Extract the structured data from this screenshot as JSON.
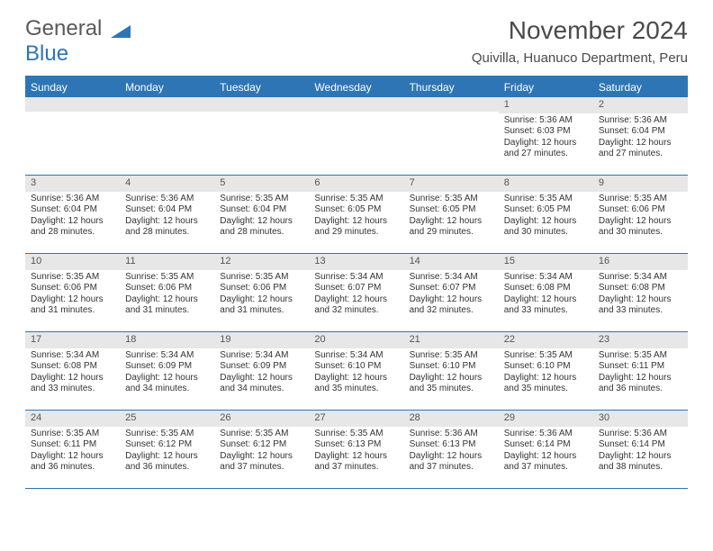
{
  "logo": {
    "text1": "General",
    "text2": "Blue"
  },
  "header": {
    "month_title": "November 2024",
    "location": "Quivilla, Huanuco Department, Peru"
  },
  "day_names": [
    "Sunday",
    "Monday",
    "Tuesday",
    "Wednesday",
    "Thursday",
    "Friday",
    "Saturday"
  ],
  "colors": {
    "accent": "#2e75b6",
    "header_text": "#ffffff",
    "cell_num_bg": "#e7e7e7",
    "body_text": "#333333"
  },
  "weeks": [
    [
      {
        "num": "",
        "sunrise": "",
        "sunset": "",
        "daylight1": "",
        "daylight2": ""
      },
      {
        "num": "",
        "sunrise": "",
        "sunset": "",
        "daylight1": "",
        "daylight2": ""
      },
      {
        "num": "",
        "sunrise": "",
        "sunset": "",
        "daylight1": "",
        "daylight2": ""
      },
      {
        "num": "",
        "sunrise": "",
        "sunset": "",
        "daylight1": "",
        "daylight2": ""
      },
      {
        "num": "",
        "sunrise": "",
        "sunset": "",
        "daylight1": "",
        "daylight2": ""
      },
      {
        "num": "1",
        "sunrise": "Sunrise: 5:36 AM",
        "sunset": "Sunset: 6:03 PM",
        "daylight1": "Daylight: 12 hours",
        "daylight2": "and 27 minutes."
      },
      {
        "num": "2",
        "sunrise": "Sunrise: 5:36 AM",
        "sunset": "Sunset: 6:04 PM",
        "daylight1": "Daylight: 12 hours",
        "daylight2": "and 27 minutes."
      }
    ],
    [
      {
        "num": "3",
        "sunrise": "Sunrise: 5:36 AM",
        "sunset": "Sunset: 6:04 PM",
        "daylight1": "Daylight: 12 hours",
        "daylight2": "and 28 minutes."
      },
      {
        "num": "4",
        "sunrise": "Sunrise: 5:36 AM",
        "sunset": "Sunset: 6:04 PM",
        "daylight1": "Daylight: 12 hours",
        "daylight2": "and 28 minutes."
      },
      {
        "num": "5",
        "sunrise": "Sunrise: 5:35 AM",
        "sunset": "Sunset: 6:04 PM",
        "daylight1": "Daylight: 12 hours",
        "daylight2": "and 28 minutes."
      },
      {
        "num": "6",
        "sunrise": "Sunrise: 5:35 AM",
        "sunset": "Sunset: 6:05 PM",
        "daylight1": "Daylight: 12 hours",
        "daylight2": "and 29 minutes."
      },
      {
        "num": "7",
        "sunrise": "Sunrise: 5:35 AM",
        "sunset": "Sunset: 6:05 PM",
        "daylight1": "Daylight: 12 hours",
        "daylight2": "and 29 minutes."
      },
      {
        "num": "8",
        "sunrise": "Sunrise: 5:35 AM",
        "sunset": "Sunset: 6:05 PM",
        "daylight1": "Daylight: 12 hours",
        "daylight2": "and 30 minutes."
      },
      {
        "num": "9",
        "sunrise": "Sunrise: 5:35 AM",
        "sunset": "Sunset: 6:06 PM",
        "daylight1": "Daylight: 12 hours",
        "daylight2": "and 30 minutes."
      }
    ],
    [
      {
        "num": "10",
        "sunrise": "Sunrise: 5:35 AM",
        "sunset": "Sunset: 6:06 PM",
        "daylight1": "Daylight: 12 hours",
        "daylight2": "and 31 minutes."
      },
      {
        "num": "11",
        "sunrise": "Sunrise: 5:35 AM",
        "sunset": "Sunset: 6:06 PM",
        "daylight1": "Daylight: 12 hours",
        "daylight2": "and 31 minutes."
      },
      {
        "num": "12",
        "sunrise": "Sunrise: 5:35 AM",
        "sunset": "Sunset: 6:06 PM",
        "daylight1": "Daylight: 12 hours",
        "daylight2": "and 31 minutes."
      },
      {
        "num": "13",
        "sunrise": "Sunrise: 5:34 AM",
        "sunset": "Sunset: 6:07 PM",
        "daylight1": "Daylight: 12 hours",
        "daylight2": "and 32 minutes."
      },
      {
        "num": "14",
        "sunrise": "Sunrise: 5:34 AM",
        "sunset": "Sunset: 6:07 PM",
        "daylight1": "Daylight: 12 hours",
        "daylight2": "and 32 minutes."
      },
      {
        "num": "15",
        "sunrise": "Sunrise: 5:34 AM",
        "sunset": "Sunset: 6:08 PM",
        "daylight1": "Daylight: 12 hours",
        "daylight2": "and 33 minutes."
      },
      {
        "num": "16",
        "sunrise": "Sunrise: 5:34 AM",
        "sunset": "Sunset: 6:08 PM",
        "daylight1": "Daylight: 12 hours",
        "daylight2": "and 33 minutes."
      }
    ],
    [
      {
        "num": "17",
        "sunrise": "Sunrise: 5:34 AM",
        "sunset": "Sunset: 6:08 PM",
        "daylight1": "Daylight: 12 hours",
        "daylight2": "and 33 minutes."
      },
      {
        "num": "18",
        "sunrise": "Sunrise: 5:34 AM",
        "sunset": "Sunset: 6:09 PM",
        "daylight1": "Daylight: 12 hours",
        "daylight2": "and 34 minutes."
      },
      {
        "num": "19",
        "sunrise": "Sunrise: 5:34 AM",
        "sunset": "Sunset: 6:09 PM",
        "daylight1": "Daylight: 12 hours",
        "daylight2": "and 34 minutes."
      },
      {
        "num": "20",
        "sunrise": "Sunrise: 5:34 AM",
        "sunset": "Sunset: 6:10 PM",
        "daylight1": "Daylight: 12 hours",
        "daylight2": "and 35 minutes."
      },
      {
        "num": "21",
        "sunrise": "Sunrise: 5:35 AM",
        "sunset": "Sunset: 6:10 PM",
        "daylight1": "Daylight: 12 hours",
        "daylight2": "and 35 minutes."
      },
      {
        "num": "22",
        "sunrise": "Sunrise: 5:35 AM",
        "sunset": "Sunset: 6:10 PM",
        "daylight1": "Daylight: 12 hours",
        "daylight2": "and 35 minutes."
      },
      {
        "num": "23",
        "sunrise": "Sunrise: 5:35 AM",
        "sunset": "Sunset: 6:11 PM",
        "daylight1": "Daylight: 12 hours",
        "daylight2": "and 36 minutes."
      }
    ],
    [
      {
        "num": "24",
        "sunrise": "Sunrise: 5:35 AM",
        "sunset": "Sunset: 6:11 PM",
        "daylight1": "Daylight: 12 hours",
        "daylight2": "and 36 minutes."
      },
      {
        "num": "25",
        "sunrise": "Sunrise: 5:35 AM",
        "sunset": "Sunset: 6:12 PM",
        "daylight1": "Daylight: 12 hours",
        "daylight2": "and 36 minutes."
      },
      {
        "num": "26",
        "sunrise": "Sunrise: 5:35 AM",
        "sunset": "Sunset: 6:12 PM",
        "daylight1": "Daylight: 12 hours",
        "daylight2": "and 37 minutes."
      },
      {
        "num": "27",
        "sunrise": "Sunrise: 5:35 AM",
        "sunset": "Sunset: 6:13 PM",
        "daylight1": "Daylight: 12 hours",
        "daylight2": "and 37 minutes."
      },
      {
        "num": "28",
        "sunrise": "Sunrise: 5:36 AM",
        "sunset": "Sunset: 6:13 PM",
        "daylight1": "Daylight: 12 hours",
        "daylight2": "and 37 minutes."
      },
      {
        "num": "29",
        "sunrise": "Sunrise: 5:36 AM",
        "sunset": "Sunset: 6:14 PM",
        "daylight1": "Daylight: 12 hours",
        "daylight2": "and 37 minutes."
      },
      {
        "num": "30",
        "sunrise": "Sunrise: 5:36 AM",
        "sunset": "Sunset: 6:14 PM",
        "daylight1": "Daylight: 12 hours",
        "daylight2": "and 38 minutes."
      }
    ]
  ]
}
